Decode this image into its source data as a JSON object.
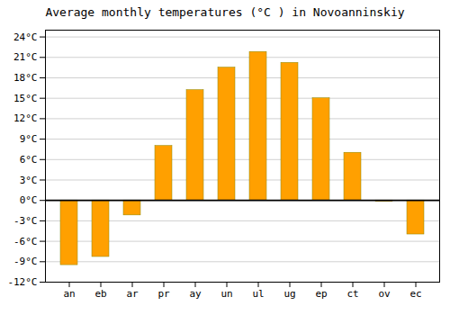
{
  "chart_data": {
    "type": "bar",
    "title": "Average monthly temperatures (°C ) in Novoanninskiy",
    "categories": [
      "an",
      "eb",
      "ar",
      "pr",
      "ay",
      "un",
      "ul",
      "ug",
      "ep",
      "ct",
      "ov",
      "ec"
    ],
    "values": [
      -9.5,
      -8.3,
      -2.2,
      8.0,
      16.2,
      19.5,
      21.8,
      20.2,
      15.0,
      7.0,
      -0.2,
      -5.0
    ],
    "color": "#FFA000",
    "ylim": [
      -12,
      25
    ],
    "yticks": [
      {
        "value": -12,
        "label": "-12°C"
      },
      {
        "value": -9,
        "label": "-9°C"
      },
      {
        "value": -6,
        "label": "-6°C"
      },
      {
        "value": -3,
        "label": "-3°C"
      },
      {
        "value": 0,
        "label": "0°C"
      },
      {
        "value": 3,
        "label": "3°C"
      },
      {
        "value": 6,
        "label": "6°C"
      },
      {
        "value": 9,
        "label": "9°C"
      },
      {
        "value": 12,
        "label": "12°C"
      },
      {
        "value": 15,
        "label": "15°C"
      },
      {
        "value": 18,
        "label": "18°C"
      },
      {
        "value": 21,
        "label": "21°C"
      },
      {
        "value": 24,
        "label": "24°C"
      }
    ],
    "grid": true
  }
}
